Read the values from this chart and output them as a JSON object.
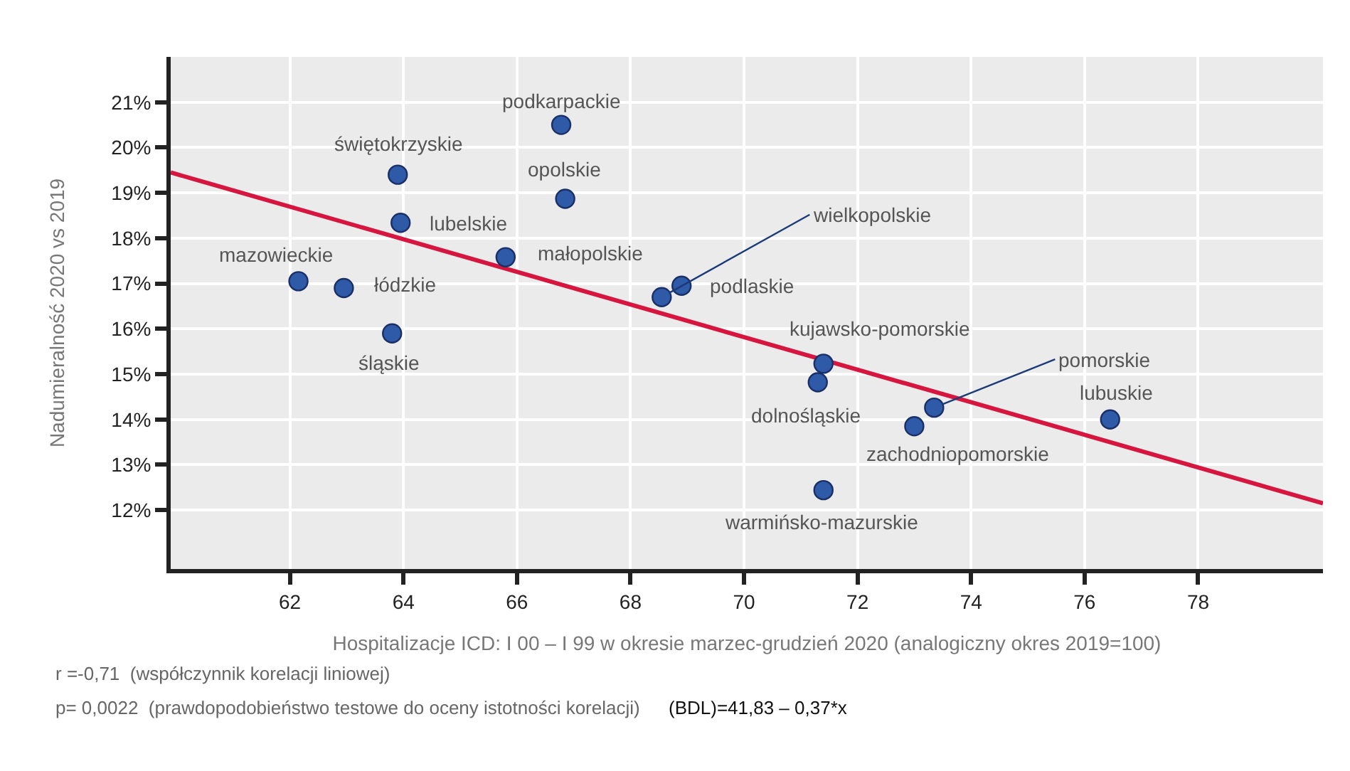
{
  "chart_data": {
    "type": "scatter",
    "xlabel": "Hospitalizacje ICD: I 00 – I 99 w okresie marzec-grudzień 2020 (analogiczny okres 2019=100)",
    "ylabel": "Nadumieralność 2020 vs 2019",
    "series": [
      {
        "color": "#2f5aa8",
        "marker": "circle",
        "x": [
          66.78,
          63.9,
          66.85,
          63.95,
          65.8,
          62.15,
          62.95,
          63.8,
          68.55,
          68.9,
          71.4,
          71.3,
          73.35,
          73.0,
          71.4,
          76.45
        ],
        "values": [
          20.5,
          19.4,
          18.87,
          18.34,
          17.58,
          17.05,
          16.9,
          15.9,
          16.7,
          16.95,
          15.23,
          14.82,
          14.26,
          13.85,
          12.44,
          14.0
        ]
      },
      {
        "type": "line",
        "color": "#d6163f",
        "line_style": "solid",
        "x": [
          59.9,
          80.2
        ],
        "values": [
          19.45,
          12.15
        ]
      }
    ],
    "annotations": [
      {
        "text": "podkarpackie",
        "x": 66.78,
        "y": 20.5
      },
      {
        "text": "świętokrzyskie",
        "x": 63.9,
        "y": 19.4
      },
      {
        "text": "opolskie",
        "x": 66.85,
        "y": 18.87
      },
      {
        "text": "lubelskie",
        "x": 63.95,
        "y": 18.34
      },
      {
        "text": "małopolskie",
        "x": 65.8,
        "y": 17.58
      },
      {
        "text": "mazowieckie",
        "x": 62.15,
        "y": 17.05
      },
      {
        "text": "łódzkie",
        "x": 62.95,
        "y": 16.9
      },
      {
        "text": "śląskie",
        "x": 63.8,
        "y": 15.9
      },
      {
        "text": "wielkopolskie",
        "x": 68.55,
        "y": 16.7
      },
      {
        "text": "podlaskie",
        "x": 68.9,
        "y": 16.95
      },
      {
        "text": "kujawsko-pomorskie",
        "x": 71.4,
        "y": 15.23
      },
      {
        "text": "dolnośląskie",
        "x": 71.3,
        "y": 14.82
      },
      {
        "text": "pomorskie",
        "x": 73.35,
        "y": 14.26
      },
      {
        "text": "zachodniopomorskie",
        "x": 73.0,
        "y": 13.85
      },
      {
        "text": "warmińsko-mazurskie",
        "x": 71.4,
        "y": 12.44
      },
      {
        "text": "lubuskie",
        "x": 76.45,
        "y": 14.0
      },
      "r =-0,71  (współczynnik korelacji liniowej)",
      "p= 0,0022  (prawdopodobieństwo testowe do oceny istotności korelacji)",
      "(BDL)=41,83 – 0,37*x"
    ],
    "xlim": [
      59.9,
      80.2
    ],
    "xticks": [
      62,
      64,
      66,
      68,
      70,
      72,
      74,
      76,
      78
    ],
    "ylim": [
      10.7,
      22
    ],
    "yticks": [
      {
        "value": 12,
        "label": "12%"
      },
      {
        "value": 13,
        "label": "13%"
      },
      {
        "value": 14,
        "label": "14%"
      },
      {
        "value": 15,
        "label": "15%"
      },
      {
        "value": 16,
        "label": "16%"
      },
      {
        "value": 17,
        "label": "17%"
      },
      {
        "value": 18,
        "label": "18%"
      },
      {
        "value": 19,
        "label": "19%"
      },
      {
        "value": 20,
        "label": "20%"
      },
      {
        "value": 21,
        "label": "21%"
      }
    ],
    "grid": true
  }
}
